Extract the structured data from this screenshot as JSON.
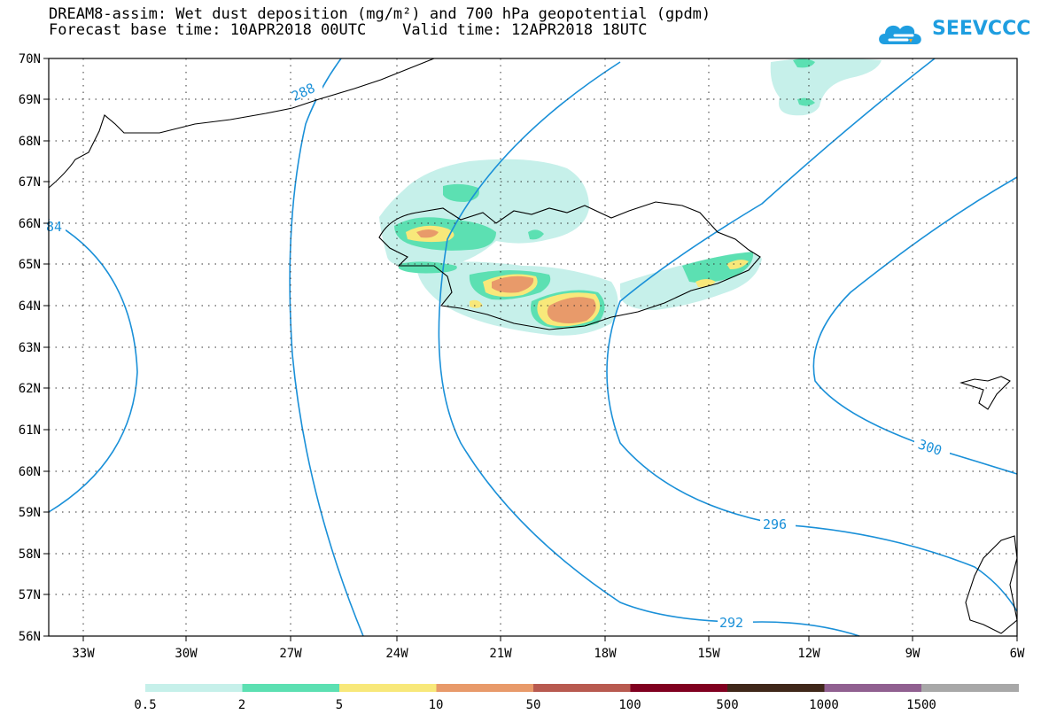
{
  "header": {
    "title_line1": "DREAM8-assim: Wet dust deposition (mg/m²) and 700 hPa geopotential (gpdm)",
    "title_line2": "Forecast base time: 10APR2018 00UTC    Valid time: 12APR2018 18UTC",
    "logo_text": "SEEVCCC",
    "logo_color": "#1f9ee0"
  },
  "axes": {
    "lat_labels": [
      "70N",
      "69N",
      "68N",
      "67N",
      "66N",
      "65N",
      "64N",
      "63N",
      "62N",
      "61N",
      "60N",
      "59N",
      "58N",
      "57N",
      "56N"
    ],
    "lon_labels": [
      "33W",
      "30W",
      "27W",
      "24W",
      "21W",
      "18W",
      "15W",
      "12W",
      "9W",
      "6W"
    ]
  },
  "contours": {
    "labels": [
      "288",
      "84",
      "300",
      "296",
      "292"
    ],
    "color": "#1a90d8"
  },
  "legend": {
    "colors": [
      "#c6f0ea",
      "#5ce0b2",
      "#f8e87a",
      "#e89a6a",
      "#b85a50",
      "#800020",
      "#40281a",
      "#906090",
      "#a8a8a8"
    ],
    "labels": [
      "0.5",
      "2",
      "5",
      "10",
      "50",
      "100",
      "500",
      "1000",
      "1500"
    ]
  },
  "colors": {
    "coast": "#000000",
    "grid": "#333333"
  }
}
